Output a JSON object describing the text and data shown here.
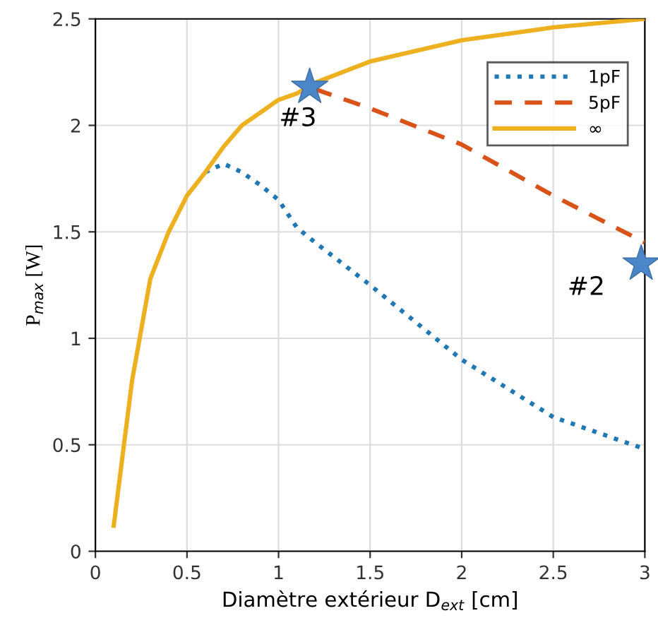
{
  "chart_data": {
    "type": "line",
    "xlabel": "Diamètre extérieur D$_{ext}$ [cm]",
    "ylabel": "P$_{max}$ [W]",
    "xlim": [
      0,
      3
    ],
    "ylim": [
      0,
      2.5
    ],
    "xticks": [
      0,
      0.5,
      1,
      1.5,
      2,
      2.5,
      3
    ],
    "yticks": [
      0,
      0.5,
      1,
      1.5,
      2,
      2.5
    ],
    "grid": true,
    "legend": "top right",
    "marker": "none",
    "series": [
      {
        "name": "1pF",
        "color": "#1f77b4",
        "line_style": "dotted",
        "x": [
          0.6,
          0.7,
          0.8,
          0.9,
          1.0,
          1.1,
          1.2,
          1.5,
          2.0,
          2.5,
          3.0
        ],
        "values": [
          1.78,
          1.82,
          1.78,
          1.72,
          1.65,
          1.52,
          1.45,
          1.25,
          0.9,
          0.63,
          0.48
        ]
      },
      {
        "name": "5pF",
        "color": "#d95319",
        "line_style": "dashed",
        "x": [
          1.2,
          1.5,
          2.0,
          2.5,
          3.0
        ],
        "values": [
          2.17,
          2.08,
          1.91,
          1.67,
          1.45
        ]
      },
      {
        "name": "∞",
        "color": "#edb120",
        "line_style": "solid",
        "x": [
          0.1,
          0.2,
          0.3,
          0.4,
          0.5,
          0.6,
          0.7,
          0.8,
          0.9,
          1.0,
          1.1,
          1.2,
          1.5,
          2.0,
          2.5,
          3.0
        ],
        "values": [
          0.12,
          0.8,
          1.28,
          1.5,
          1.67,
          1.78,
          1.9,
          2.0,
          2.06,
          2.12,
          2.15,
          2.2,
          2.3,
          2.4,
          2.46,
          2.5
        ]
      },
      {
        "type": "scatter",
        "marker": "star",
        "color": "#4a86c8",
        "x": [
          1.17,
          2.98
        ],
        "values": [
          2.18,
          1.35
        ]
      }
    ],
    "annotations": [
      {
        "text": "#3",
        "x": 1.17,
        "y": 2.18
      },
      {
        "text": "#2",
        "x": 2.98,
        "y": 1.35
      }
    ]
  }
}
